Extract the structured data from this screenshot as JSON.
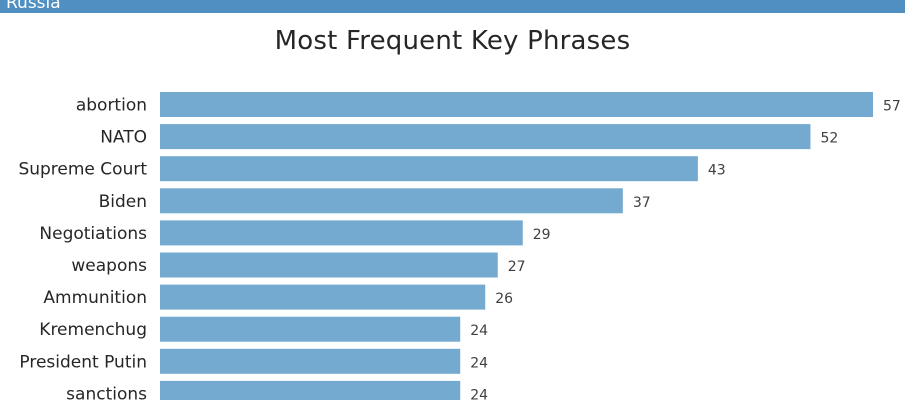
{
  "header": {
    "label": "Russia"
  },
  "colors": {
    "bar": "#74a9d0",
    "header_bar": "#4f8fc1"
  },
  "chart_data": {
    "type": "bar",
    "orientation": "horizontal",
    "title": "Most Frequent Key Phrases",
    "categories": [
      "abortion",
      "NATO",
      "Supreme Court",
      "Biden",
      "Negotiations",
      "weapons",
      "Ammunition",
      "Kremenchug",
      "President Putin",
      "sanctions"
    ],
    "values": [
      57,
      52,
      43,
      37,
      29,
      27,
      26,
      24,
      24,
      24
    ],
    "data_labels": [
      "57",
      "52",
      "43",
      "37",
      "29",
      "27",
      "26",
      "24",
      "24",
      "24"
    ],
    "xlim": [
      0,
      57
    ],
    "grid": false,
    "legend": "none"
  }
}
